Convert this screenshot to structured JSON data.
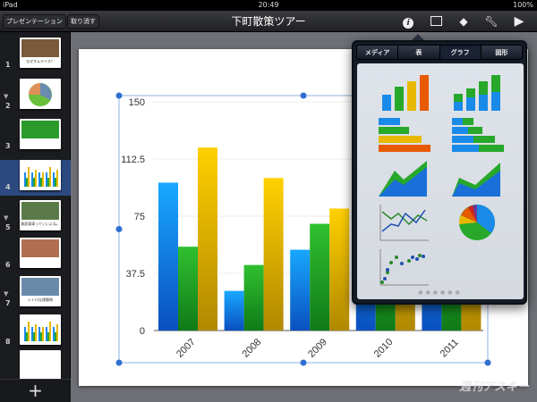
{
  "status": {
    "device": "iPad",
    "time": "20:49",
    "battery": "100%"
  },
  "toolbar": {
    "presentations": "プレゼンテーション",
    "undo": "取り消す",
    "title": "下町散策ツアー",
    "icons": [
      "info-icon",
      "media-icon",
      "shapes-icon",
      "wrench-icon",
      "play-icon"
    ]
  },
  "sidebar": {
    "slides": [
      {
        "num": "1",
        "title": "なぜオムライス？"
      },
      {
        "num": "2"
      },
      {
        "num": "3"
      },
      {
        "num": "4"
      },
      {
        "num": "5",
        "title": "路面電車っていいよね。"
      },
      {
        "num": "6"
      },
      {
        "num": "7",
        "title": "レトロな建築物"
      },
      {
        "num": "8"
      },
      {
        "num": ""
      }
    ],
    "add": "+"
  },
  "popover": {
    "tabs": [
      "メディア",
      "表",
      "グラフ",
      "図形"
    ],
    "active_tab": "グラフ",
    "pages": 6,
    "current_page": 1,
    "items": [
      "column-chart-icon",
      "stacked-column-chart-icon",
      "bar-chart-icon",
      "stacked-bar-chart-icon",
      "area-chart-icon",
      "stacked-area-chart-icon",
      "line-chart-icon",
      "pie-chart-icon",
      "scatter-chart-icon"
    ]
  },
  "watermark": "週刊アスキー",
  "colors": {
    "blue": "#1a8ae8",
    "green": "#27a82a",
    "yellow": "#e8b800",
    "selection": "#2f6fd0"
  },
  "chart_data": {
    "type": "bar",
    "categories": [
      "2007",
      "2008",
      "2009",
      "2010",
      "2011"
    ],
    "series": [
      {
        "values": [
          97,
          26,
          53,
          90,
          95
        ]
      },
      {
        "values": [
          55,
          43,
          70,
          80,
          85
        ]
      },
      {
        "values": [
          120,
          100,
          80,
          110,
          105
        ]
      }
    ],
    "yticks": [
      "0",
      "37.5",
      "75",
      "112.5",
      "150"
    ],
    "ylim": [
      0,
      150
    ],
    "grid": true
  }
}
